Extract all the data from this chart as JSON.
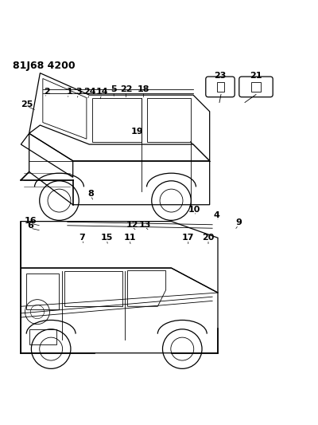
{
  "title": "81J68 4200",
  "title_fontsize": 9,
  "title_fontweight": "bold",
  "bg_color": "#ffffff",
  "line_color": "#000000",
  "label_fontsize": 7.5
}
